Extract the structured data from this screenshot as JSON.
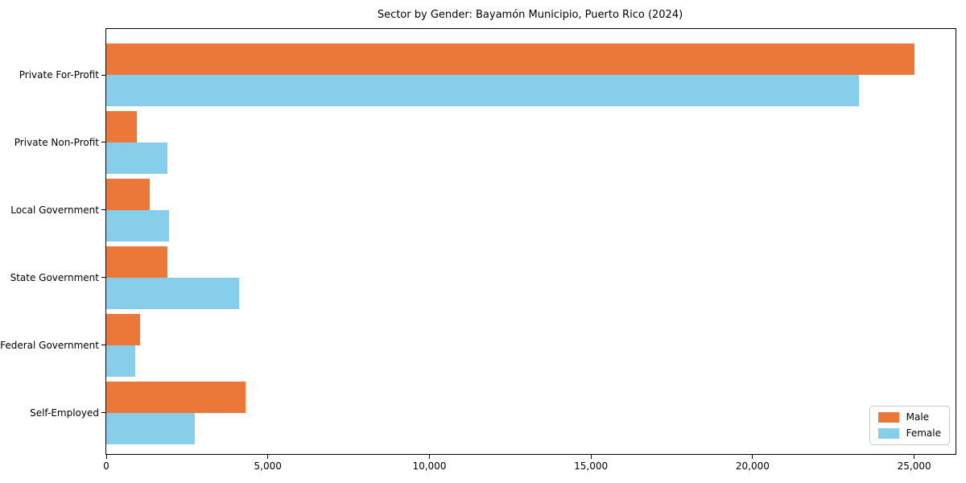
{
  "chart_data": {
    "type": "bar",
    "orientation": "horizontal",
    "title": "Sector by Gender: Bayamón Municipio, Puerto Rico (2024)",
    "categories": [
      "Private For-Profit",
      "Private Non-Profit",
      "Local Government",
      "State Government",
      "Federal Government",
      "Self-Employed"
    ],
    "series": [
      {
        "name": "Male",
        "color": "#EB7838",
        "values": [
          25000,
          950,
          1350,
          1900,
          1050,
          4300
        ]
      },
      {
        "name": "Female",
        "color": "#87CEEB",
        "values": [
          23300,
          1900,
          1950,
          4100,
          900,
          2750
        ]
      }
    ],
    "xlabel": "",
    "ylabel": "",
    "xticks": {
      "labels": [
        "0",
        "5,000",
        "10,000",
        "15,000",
        "20,000",
        "25,000"
      ],
      "values": [
        0,
        5000,
        10000,
        15000,
        20000,
        25000
      ]
    },
    "xlim": [
      0,
      26280
    ],
    "grid": false,
    "legend": {
      "position": "lower right",
      "entries": [
        "Male",
        "Female"
      ]
    },
    "colors": {
      "background": "#ffffff",
      "spine": "#000000",
      "legend_border": "#cccccc"
    }
  }
}
